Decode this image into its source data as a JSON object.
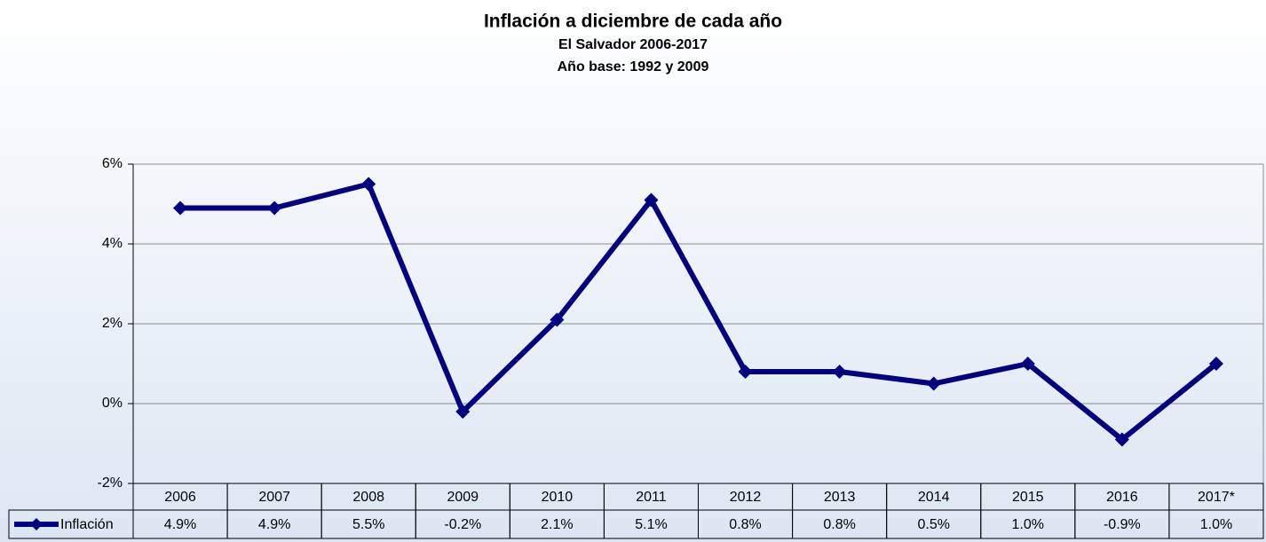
{
  "chart_data": {
    "type": "line",
    "title": "Inflación a diciembre de cada año",
    "subtitle": [
      "El Salvador 2006-2017",
      "Año base: 1992 y 2009"
    ],
    "categories": [
      "2006",
      "2007",
      "2008",
      "2009",
      "2010",
      "2011",
      "2012",
      "2013",
      "2014",
      "2015",
      "2016",
      "2017*"
    ],
    "series": [
      {
        "name": "Inflación",
        "color": "#000080",
        "values": [
          4.9,
          4.9,
          5.5,
          -0.2,
          2.1,
          5.1,
          0.8,
          0.8,
          0.5,
          1.0,
          -0.9,
          1.0
        ],
        "value_labels": [
          "4.9%",
          "4.9%",
          "5.5%",
          "-0.2%",
          "2.1%",
          "5.1%",
          "0.8%",
          "0.8%",
          "0.5%",
          "1.0%",
          "-0.9%",
          "1.0%"
        ]
      }
    ],
    "ylim": [
      -2,
      6
    ],
    "yticks": [
      {
        "value": -2,
        "label": "-2%"
      },
      {
        "value": 0,
        "label": "0%"
      },
      {
        "value": 2,
        "label": "2%"
      },
      {
        "value": 4,
        "label": "4%"
      },
      {
        "value": 6,
        "label": "6%"
      }
    ],
    "grid": true,
    "data_table": true
  }
}
